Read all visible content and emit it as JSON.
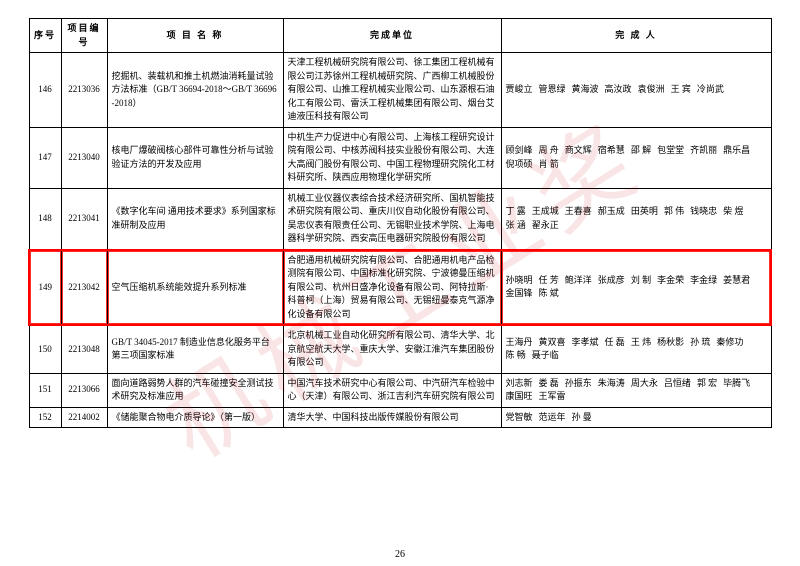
{
  "watermark": "机械工业奖",
  "page_number": "26",
  "columns": [
    "序号",
    "项目编号",
    "项 目 名 称",
    "完成单位",
    "完 成 人"
  ],
  "rows": [
    {
      "idx": "146",
      "code": "2213036",
      "name": "挖掘机、装载机和推土机燃油消耗量试验方法标准（GB/T 36694-2018～GB/T 36696-2018）",
      "units": "天津工程机械研究院有限公司、徐工集团工程机械有限公司江苏徐州工程机械研究院、广西柳工机械股份有限公司、山推工程机械实业限公司、山东源根石油化工有限公司、雷沃工程机械集团有限公司、烟台艾迪液压科技有限公司",
      "people": [
        "贾峻立",
        "管恩绿",
        "黄海波",
        "高汝政",
        "袁俊洲",
        "王 宾",
        "冷尚武"
      ],
      "hl": false
    },
    {
      "idx": "147",
      "code": "2213040",
      "name": "核电厂爆破阀核心部件可靠性分析与试验验证方法的开发及应用",
      "units": "中机生产力促进中心有限公司、上海核工程研究设计院有限公司、中核苏阀科技实业股份有限公司、大连大高阀门股份有限公司、中国工程物理研究院化工材料研究所、陕西应用物理化学研究所",
      "people": [
        "顾剑峰",
        "周 舟",
        "商文辉",
        "宿希慧",
        "邵 解",
        "包堂堂",
        "齐凯丽",
        "鼎乐昌",
        "倪项硕",
        "肖 箭"
      ],
      "hl": false
    },
    {
      "idx": "148",
      "code": "2213041",
      "name": "《数字化车间 通用技术要求》系列国家标准研制及应用",
      "units": "机械工业仪器仪表综合技术经济研究所、国机智能技术研究院有限公司、重庆川仪自动化股份有限公司、吴忠仪表有限责任公司、无锡职业技术学院、上海电器科学研究院、西安高压电器研究院股份有限公司",
      "people": [
        "丁 露",
        "王成城",
        "王春喜",
        "郝玉成",
        "田英明",
        "郭 伟",
        "钱晓忠",
        "柴 煜",
        "张 涵",
        "翟永正"
      ],
      "hl": false
    },
    {
      "idx": "149",
      "code": "2213042",
      "name": "空气压缩机系统能效提升系列标准",
      "units": "合肥通用机械研究院有限公司、合肥通用机电产品检测院有限公司、中国标准化研究院、宁波德曼压缩机有限公司、杭州日盛净化设备有限公司、阿特拉斯·科普柯（上海）贸易有限公司、无锡纽曼泰克气源净化设备有限公司",
      "people": [
        "孙晓明",
        "任 芳",
        "鲍洋洋",
        "张成彦",
        "刘 制",
        "李金荣",
        "李金绿",
        "姜慧君",
        "金国锋",
        "陈 斌"
      ],
      "hl": true
    },
    {
      "idx": "150",
      "code": "2213048",
      "name": "GB/T 34045-2017 制造业信息化服务平台第三项国家标准",
      "units": "北京机械工业自动化研究所有限公司、清华大学、北京航空航天大学、重庆大学、安徽江淮汽车集团股份有限公司",
      "people": [
        "王海丹",
        "黄双喜",
        "李孝斌",
        "任 磊",
        "王 炜",
        "杨秋影",
        "孙 琉",
        "秦修功",
        "陈 畅",
        "聂子临"
      ],
      "hl": false
    },
    {
      "idx": "151",
      "code": "2213066",
      "name": "面向道路弱势人群的汽车碰撞安全测试技术研究及标准应用",
      "units": "中国汽车技术研究中心有限公司、中汽研汽车检验中心（天津）有限公司、浙江吉利汽车研究院有限公司",
      "people": [
        "刘志新",
        "娄 磊",
        "孙振东",
        "朱海涛",
        "周大永",
        "吕恒绪",
        "郭 宏",
        "毕腾飞",
        "康国旺",
        "王军雷"
      ],
      "hl": false
    },
    {
      "idx": "152",
      "code": "2214002",
      "name": "《储能聚合物电介质导论》（第一版）",
      "units": "清华大学、中国科技出版传媒股份有限公司",
      "people": [
        "党智敏",
        "范运年",
        "孙 曼"
      ],
      "hl": false
    }
  ]
}
